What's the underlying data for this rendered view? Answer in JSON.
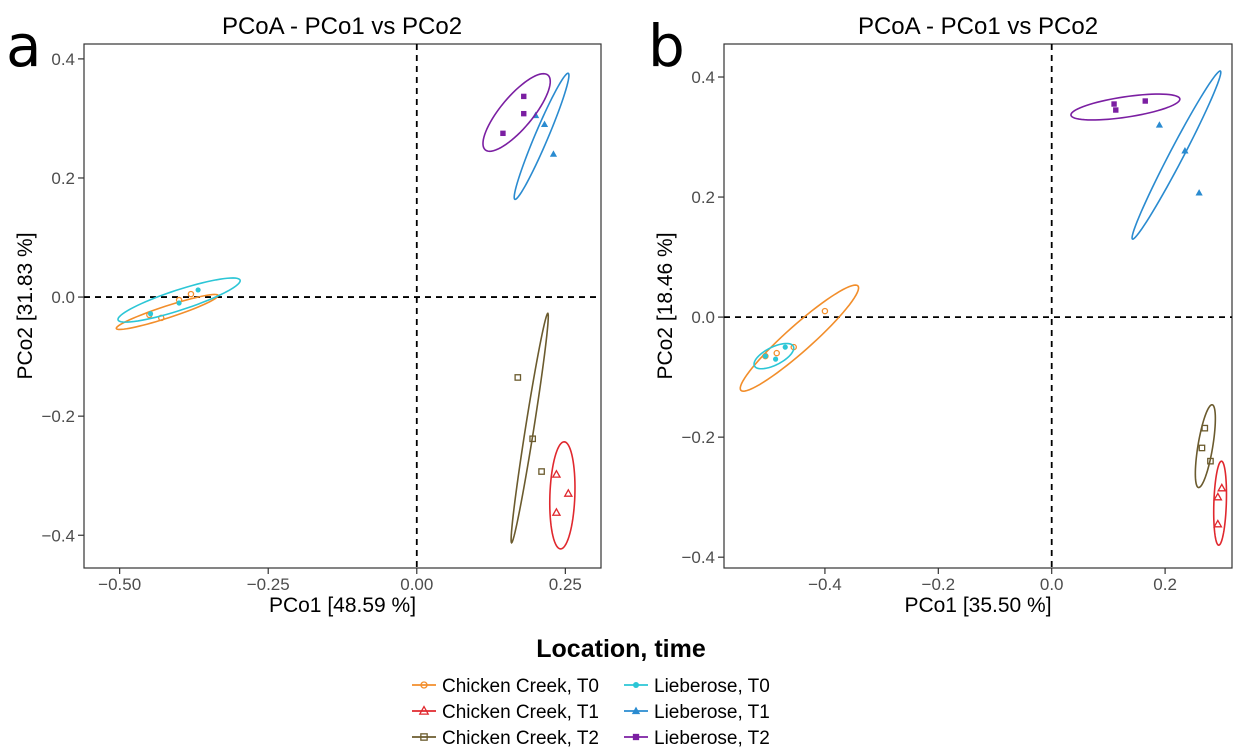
{
  "legend": {
    "title": "Location, time",
    "entries": [
      {
        "label": "Chicken Creek, T0",
        "color": "#F28E2B",
        "shape": "circle-open"
      },
      {
        "label": "Chicken Creek, T1",
        "color": "#E0282E",
        "shape": "triangle-open"
      },
      {
        "label": "Chicken Creek, T2",
        "color": "#6B5B2E",
        "shape": "square-open"
      },
      {
        "label": "Lieberose, T0",
        "color": "#2CC6D6",
        "shape": "circle-filled"
      },
      {
        "label": "Lieberose, T1",
        "color": "#2A8BD0",
        "shape": "triangle-filled"
      },
      {
        "label": "Lieberose, T2",
        "color": "#7B1FA2",
        "shape": "square-filled"
      }
    ],
    "placement": "bottom-center"
  },
  "chart_data": [
    {
      "type": "scatter",
      "panel_letter": "a",
      "title": "PCoA - PCo1 vs PCo2",
      "xlabel": "PCo1 [48.59 %]",
      "ylabel": "PCo2 [31.83 %]",
      "xlim": [
        -0.56,
        0.31
      ],
      "ylim": [
        -0.455,
        0.425
      ],
      "xticks": [
        -0.5,
        -0.25,
        0.0,
        0.25
      ],
      "xtick_labels": [
        "-0.50",
        "-0.25",
        "0.00",
        "0.25"
      ],
      "yticks": [
        -0.4,
        -0.2,
        0.0,
        0.2,
        0.4
      ],
      "ytick_labels": [
        "-0.4",
        "-0.2",
        "0.0",
        "0.2",
        "0.4"
      ],
      "reference_lines": {
        "x": 0,
        "y": 0,
        "style": "dashed"
      },
      "grid": false,
      "series": [
        {
          "name": "Chicken Creek, T0",
          "points": [
            [
              -0.45,
              -0.03
            ],
            [
              -0.43,
              -0.035
            ],
            [
              -0.4,
              -0.005
            ],
            [
              -0.38,
              0.005
            ]
          ],
          "ellipse": {
            "cx": -0.42,
            "cy": -0.025,
            "rx": 0.09,
            "ry": 0.01,
            "angle_deg": 18
          }
        },
        {
          "name": "Chicken Creek, T1",
          "points": [
            [
              0.235,
              -0.298
            ],
            [
              0.255,
              -0.33
            ],
            [
              0.235,
              -0.362
            ]
          ],
          "ellipse": {
            "cx": 0.245,
            "cy": -0.333,
            "rx": 0.09,
            "ry": 0.021,
            "angle_deg": 88
          }
        },
        {
          "name": "Chicken Creek, T2",
          "points": [
            [
              0.17,
              -0.135
            ],
            [
              0.195,
              -0.238
            ],
            [
              0.21,
              -0.293
            ]
          ],
          "ellipse": {
            "cx": 0.19,
            "cy": -0.22,
            "rx": 0.195,
            "ry": 0.007,
            "angle_deg": 81
          }
        },
        {
          "name": "Lieberose, T0",
          "points": [
            [
              -0.448,
              -0.028
            ],
            [
              -0.4,
              -0.01
            ],
            [
              -0.368,
              0.012
            ]
          ],
          "ellipse": {
            "cx": -0.4,
            "cy": -0.005,
            "rx": 0.108,
            "ry": 0.017,
            "angle_deg": 18
          }
        },
        {
          "name": "Lieberose, T1",
          "points": [
            [
              0.2,
              0.305
            ],
            [
              0.215,
              0.29
            ],
            [
              0.23,
              0.24
            ]
          ],
          "ellipse": {
            "cx": 0.21,
            "cy": 0.27,
            "rx": 0.115,
            "ry": 0.011,
            "angle_deg": 67
          }
        },
        {
          "name": "Lieberose, T2",
          "points": [
            [
              0.145,
              0.275
            ],
            [
              0.18,
              0.308
            ],
            [
              0.18,
              0.337
            ]
          ],
          "ellipse": {
            "cx": 0.168,
            "cy": 0.31,
            "rx": 0.082,
            "ry": 0.027,
            "angle_deg": 50
          }
        }
      ]
    },
    {
      "type": "scatter",
      "panel_letter": "b",
      "title": "PCoA - PCo1 vs PCo2",
      "xlabel": "PCo1 [35.50 %]",
      "ylabel": "PCo2 [18.46 %]",
      "xlim": [
        -0.578,
        0.318
      ],
      "ylim": [
        -0.418,
        0.455
      ],
      "xticks": [
        -0.4,
        -0.2,
        0.0,
        0.2
      ],
      "xtick_labels": [
        "-0.4",
        "-0.2",
        "0.0",
        "0.2"
      ],
      "yticks": [
        -0.4,
        -0.2,
        0.0,
        0.2,
        0.4
      ],
      "ytick_labels": [
        "-0.4",
        "-0.2",
        "0.0",
        "0.2",
        "0.4"
      ],
      "reference_lines": {
        "x": 0,
        "y": 0,
        "style": "dashed"
      },
      "grid": false,
      "series": [
        {
          "name": "Chicken Creek, T0",
          "points": [
            [
              -0.505,
              -0.065
            ],
            [
              -0.485,
              -0.06
            ],
            [
              -0.455,
              -0.05
            ],
            [
              -0.4,
              0.01
            ]
          ],
          "ellipse": {
            "cx": -0.445,
            "cy": -0.035,
            "rx": 0.135,
            "ry": 0.022,
            "angle_deg": 40
          }
        },
        {
          "name": "Chicken Creek, T1",
          "points": [
            [
              0.3,
              -0.285
            ],
            [
              0.293,
              -0.3
            ],
            [
              0.293,
              -0.345
            ]
          ],
          "ellipse": {
            "cx": 0.297,
            "cy": -0.31,
            "rx": 0.07,
            "ry": 0.011,
            "angle_deg": 88
          }
        },
        {
          "name": "Chicken Creek, T2",
          "points": [
            [
              0.27,
              -0.185
            ],
            [
              0.265,
              -0.218
            ],
            [
              0.28,
              -0.24
            ]
          ],
          "ellipse": {
            "cx": 0.271,
            "cy": -0.215,
            "rx": 0.07,
            "ry": 0.013,
            "angle_deg": 80
          }
        },
        {
          "name": "Lieberose, T0",
          "points": [
            [
              -0.505,
              -0.065
            ],
            [
              -0.487,
              -0.07
            ],
            [
              -0.47,
              -0.05
            ]
          ],
          "ellipse": {
            "cx": -0.49,
            "cy": -0.065,
            "rx": 0.038,
            "ry": 0.015,
            "angle_deg": 25
          }
        },
        {
          "name": "Lieberose, T1",
          "points": [
            [
              0.19,
              0.32
            ],
            [
              0.235,
              0.277
            ],
            [
              0.26,
              0.207
            ]
          ],
          "ellipse": {
            "cx": 0.22,
            "cy": 0.27,
            "rx": 0.16,
            "ry": 0.012,
            "angle_deg": 61
          }
        },
        {
          "name": "Lieberose, T2",
          "points": [
            [
              0.11,
              0.355
            ],
            [
              0.113,
              0.345
            ],
            [
              0.165,
              0.36
            ]
          ],
          "ellipse": {
            "cx": 0.13,
            "cy": 0.35,
            "rx": 0.097,
            "ry": 0.017,
            "angle_deg": 8
          }
        }
      ]
    }
  ]
}
